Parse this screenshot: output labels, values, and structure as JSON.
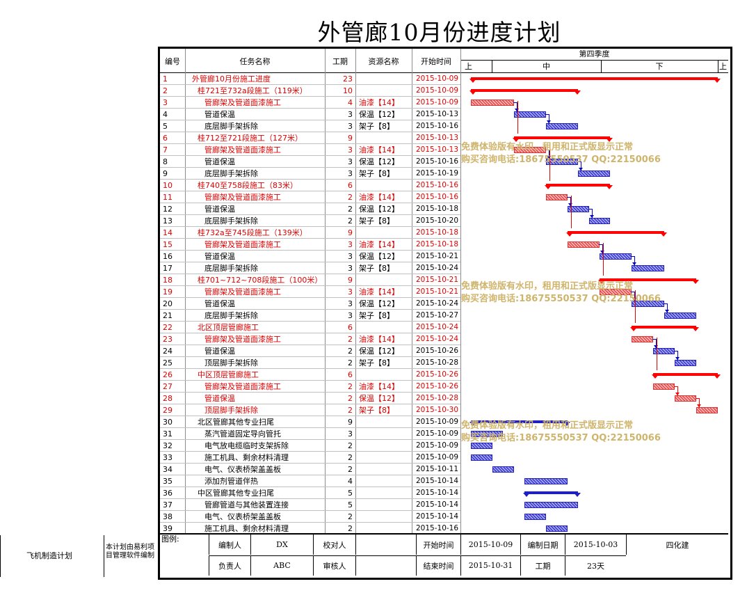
{
  "title": "外管廊10月份进度计划",
  "header": {
    "no": "编号",
    "task": "任务名称",
    "dur": "工期",
    "res": "资源名称",
    "start": "开始时间",
    "quarter": "第四季度",
    "periods": [
      "上",
      "中",
      "下",
      "上"
    ]
  },
  "timeline": {
    "start": "2015-10-09",
    "days_visible": 24
  },
  "colors": {
    "summary": "#ff0000",
    "red_task": "#e03030",
    "blue_task": "#2020c0",
    "link_red": "#ff0000",
    "link_blue": "#0000cc"
  },
  "tasks": [
    {
      "id": "1",
      "name": "外管廊10月份施工进度",
      "dur": "23",
      "res": "",
      "start": "2015-10-09",
      "lvl": 0,
      "kind": "summary",
      "color": "red"
    },
    {
      "id": "2",
      "name": "桂721至732a段施工（119米）",
      "dur": "10",
      "res": "",
      "start": "2015-10-09",
      "lvl": 1,
      "kind": "summary",
      "color": "red"
    },
    {
      "id": "3",
      "name": "管廊架及管道面漆施工",
      "dur": "4",
      "res": "油漆【14】",
      "start": "2015-10-09",
      "lvl": 2,
      "kind": "task",
      "color": "red"
    },
    {
      "id": "4",
      "name": "管道保温",
      "dur": "3",
      "res": "保温【12】",
      "start": "2015-10-13",
      "lvl": 2,
      "kind": "task",
      "color": "blue"
    },
    {
      "id": "5",
      "name": "底层脚手架拆除",
      "dur": "3",
      "res": "架子【8】",
      "start": "2015-10-16",
      "lvl": 2,
      "kind": "task",
      "color": "blue"
    },
    {
      "id": "6",
      "name": "桂712至721段施工（127米）",
      "dur": "9",
      "res": "",
      "start": "2015-10-13",
      "lvl": 1,
      "kind": "summary",
      "color": "red"
    },
    {
      "id": "7",
      "name": "管廊架及管道面漆施工",
      "dur": "3",
      "res": "油漆【14】",
      "start": "2015-10-13",
      "lvl": 2,
      "kind": "task",
      "color": "red"
    },
    {
      "id": "8",
      "name": "管道保温",
      "dur": "3",
      "res": "保温【12】",
      "start": "2015-10-16",
      "lvl": 2,
      "kind": "task",
      "color": "blue"
    },
    {
      "id": "9",
      "name": "底层脚手架拆除",
      "dur": "3",
      "res": "架子【8】",
      "start": "2015-10-19",
      "lvl": 2,
      "kind": "task",
      "color": "blue"
    },
    {
      "id": "10",
      "name": "桂740至758段施工（83米）",
      "dur": "6",
      "res": "",
      "start": "2015-10-16",
      "lvl": 1,
      "kind": "summary",
      "color": "red"
    },
    {
      "id": "11",
      "name": "管廊架及管道面漆施工",
      "dur": "2",
      "res": "油漆【14】",
      "start": "2015-10-16",
      "lvl": 2,
      "kind": "task",
      "color": "red"
    },
    {
      "id": "12",
      "name": "管道保温",
      "dur": "2",
      "res": "保温【12】",
      "start": "2015-10-18",
      "lvl": 2,
      "kind": "task",
      "color": "blue"
    },
    {
      "id": "13",
      "name": "底层脚手架拆除",
      "dur": "2",
      "res": "架子【8】",
      "start": "2015-10-20",
      "lvl": 2,
      "kind": "task",
      "color": "blue"
    },
    {
      "id": "14",
      "name": "桂732a至745段施工（139米）",
      "dur": "9",
      "res": "",
      "start": "2015-10-18",
      "lvl": 1,
      "kind": "summary",
      "color": "red"
    },
    {
      "id": "15",
      "name": "管廊架及管道面漆施工",
      "dur": "3",
      "res": "油漆【14】",
      "start": "2015-10-18",
      "lvl": 2,
      "kind": "task",
      "color": "red"
    },
    {
      "id": "16",
      "name": "管道保温",
      "dur": "3",
      "res": "保温【12】",
      "start": "2015-10-21",
      "lvl": 2,
      "kind": "task",
      "color": "blue"
    },
    {
      "id": "17",
      "name": "底层脚手架拆除",
      "dur": "3",
      "res": "架子【8】",
      "start": "2015-10-24",
      "lvl": 2,
      "kind": "task",
      "color": "blue"
    },
    {
      "id": "18",
      "name": "桂701~712~708段施工（100米）",
      "dur": "9",
      "res": "",
      "start": "2015-10-21",
      "lvl": 1,
      "kind": "summary",
      "color": "red"
    },
    {
      "id": "19",
      "name": "管廊架及管道面漆施工",
      "dur": "3",
      "res": "油漆【14】",
      "start": "2015-10-21",
      "lvl": 2,
      "kind": "task",
      "color": "red"
    },
    {
      "id": "20",
      "name": "管道保温",
      "dur": "3",
      "res": "保温【12】",
      "start": "2015-10-24",
      "lvl": 2,
      "kind": "task",
      "color": "blue"
    },
    {
      "id": "21",
      "name": "底层脚手架拆除",
      "dur": "3",
      "res": "架子【8】",
      "start": "2015-10-27",
      "lvl": 2,
      "kind": "task",
      "color": "blue"
    },
    {
      "id": "22",
      "name": "北区顶层管廊施工",
      "dur": "6",
      "res": "",
      "start": "2015-10-24",
      "lvl": 1,
      "kind": "summary",
      "color": "red"
    },
    {
      "id": "23",
      "name": "管廊架及管道面漆施工",
      "dur": "2",
      "res": "油漆【14】",
      "start": "2015-10-24",
      "lvl": 2,
      "kind": "task",
      "color": "red"
    },
    {
      "id": "24",
      "name": "管道保温",
      "dur": "2",
      "res": "保温【12】",
      "start": "2015-10-26",
      "lvl": 2,
      "kind": "task",
      "color": "blue"
    },
    {
      "id": "25",
      "name": "顶层脚手架拆除",
      "dur": "2",
      "res": "架子【8】",
      "start": "2015-10-28",
      "lvl": 2,
      "kind": "task",
      "color": "blue"
    },
    {
      "id": "26",
      "name": "中区顶层管廊施工",
      "dur": "6",
      "res": "",
      "start": "2015-10-26",
      "lvl": 1,
      "kind": "summary",
      "color": "red"
    },
    {
      "id": "27",
      "name": "管廊架及管道面漆施工",
      "dur": "2",
      "res": "油漆【14】",
      "start": "2015-10-26",
      "lvl": 2,
      "kind": "task",
      "color": "red"
    },
    {
      "id": "28",
      "name": "管道保温",
      "dur": "2",
      "res": "保温【12】",
      "start": "2015-10-28",
      "lvl": 2,
      "kind": "task",
      "color": "red"
    },
    {
      "id": "29",
      "name": "顶层脚手架拆除",
      "dur": "2",
      "res": "架子【8】",
      "start": "2015-10-30",
      "lvl": 2,
      "kind": "task",
      "color": "red"
    },
    {
      "id": "30",
      "name": "北区管廊其他专业扫尾",
      "dur": "9",
      "res": "",
      "start": "2015-10-09",
      "lvl": 1,
      "kind": "summary",
      "color": "blue"
    },
    {
      "id": "31",
      "name": "蒸汽管道固定导向管托",
      "dur": "3",
      "res": "",
      "start": "2015-10-09",
      "lvl": 2,
      "kind": "task",
      "color": "blue"
    },
    {
      "id": "32",
      "name": "电气放电缆临时支架拆除",
      "dur": "2",
      "res": "",
      "start": "2015-10-09",
      "lvl": 2,
      "kind": "task",
      "color": "blue"
    },
    {
      "id": "33",
      "name": "施工机具、剩余材料清理",
      "dur": "2",
      "res": "",
      "start": "2015-10-09",
      "lvl": 2,
      "kind": "task",
      "color": "blue"
    },
    {
      "id": "34",
      "name": "电气、仪表桥架盖盖板",
      "dur": "2",
      "res": "",
      "start": "2015-10-11",
      "lvl": 2,
      "kind": "task",
      "color": "blue"
    },
    {
      "id": "35",
      "name": "添加剂管道伴热",
      "dur": "4",
      "res": "",
      "start": "2015-10-14",
      "lvl": 2,
      "kind": "task",
      "color": "blue"
    },
    {
      "id": "36",
      "name": "中区管廊其他专业扫尾",
      "dur": "5",
      "res": "",
      "start": "2015-10-14",
      "lvl": 1,
      "kind": "summary",
      "color": "blue"
    },
    {
      "id": "37",
      "name": "管廊管道与其他装置连接",
      "dur": "5",
      "res": "",
      "start": "2015-10-14",
      "lvl": 2,
      "kind": "task",
      "color": "blue"
    },
    {
      "id": "38",
      "name": "电气、仪表桥架盖盖板",
      "dur": "2",
      "res": "",
      "start": "2015-10-14",
      "lvl": 2,
      "kind": "task",
      "color": "blue"
    },
    {
      "id": "39",
      "name": "施工机具、剩余材料清理",
      "dur": "2",
      "res": "",
      "start": "2015-10-16",
      "lvl": 2,
      "kind": "task",
      "color": "blue"
    }
  ],
  "links": [
    [
      3,
      4
    ],
    [
      4,
      5
    ],
    [
      7,
      8
    ],
    [
      8,
      9
    ],
    [
      11,
      12
    ],
    [
      12,
      13
    ],
    [
      15,
      16
    ],
    [
      16,
      17
    ],
    [
      19,
      20
    ],
    [
      20,
      21
    ],
    [
      23,
      24
    ],
    [
      24,
      25
    ],
    [
      27,
      28
    ],
    [
      28,
      29
    ]
  ],
  "watermark": {
    "line1": "免费体验版有水印，租用和正式版显示正常",
    "line2": "购买咨询电话:18675550537 QQ:22150066"
  },
  "footer": {
    "legend": "图例:",
    "editor_label": "编制人",
    "editor": "DX",
    "checker_label": "校对人",
    "checker": "",
    "start_label": "开始时间",
    "start": "2015-10-09",
    "date_label": "编制日期",
    "date": "2015-10-03",
    "company": "四化建",
    "owner_label": "负责人",
    "owner": "ABC",
    "reviewer_label": "审核人",
    "reviewer": "",
    "end_label": "结束时间",
    "end": "2015-10-31",
    "dur_label": "工期",
    "dur": "23天"
  },
  "side": {
    "plan_name": "飞机制造计划",
    "note": "本计划由易利项目管理软件编制"
  }
}
